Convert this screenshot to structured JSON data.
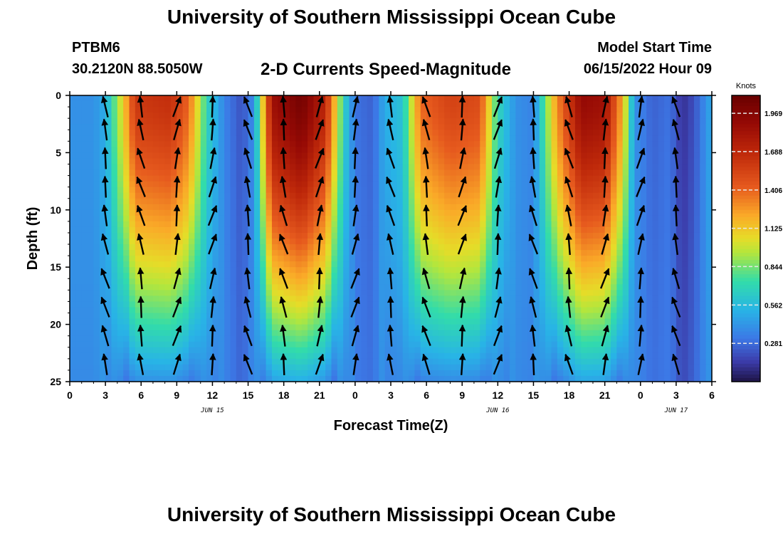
{
  "header": {
    "title": "University of Southern Mississippi Ocean Cube",
    "station": "PTBM6",
    "coordinates": "30.2120N  88.5050W",
    "subtitle": "2-D Currents Speed-Magnitude",
    "model_start_label": "Model Start Time",
    "model_start_value": "06/15/2022 Hour 09"
  },
  "footer": {
    "title": "University of Southern Mississippi Ocean Cube"
  },
  "chart_data": {
    "type": "heatmap",
    "title": "2-D Currents Speed-Magnitude",
    "xlabel": "Forecast Time(Z)",
    "ylabel": "Depth (ft)",
    "x_hours_range": [
      0,
      54
    ],
    "ylim": [
      0,
      25
    ],
    "x_tick_labels": [
      "0",
      "3",
      "6",
      "9",
      "12",
      "15",
      "18",
      "21",
      "0",
      "3",
      "6",
      "9",
      "12",
      "15",
      "18",
      "21",
      "0",
      "3",
      "6"
    ],
    "y_ticks": [
      0,
      5,
      10,
      15,
      20,
      25
    ],
    "date_labels": [
      {
        "text": "JUN 15",
        "hour": 12
      },
      {
        "text": "JUN 16",
        "hour": 36
      },
      {
        "text": "JUN 17",
        "hour": 51
      }
    ],
    "colorbar": {
      "unit": "Knots",
      "min": 0,
      "max": 2.1,
      "ticks": [
        1.969,
        1.688,
        1.406,
        1.125,
        0.844,
        0.562,
        0.281
      ]
    },
    "speed_profile_knots": [
      [
        0,
        0.4
      ],
      [
        2,
        0.4
      ],
      [
        3,
        0.5
      ],
      [
        4.5,
        1.1
      ],
      [
        5.5,
        1.6
      ],
      [
        8.5,
        1.65
      ],
      [
        10,
        1.4
      ],
      [
        11.5,
        0.7
      ],
      [
        13,
        0.35
      ],
      [
        14.5,
        0.2
      ],
      [
        15.5,
        0.4
      ],
      [
        17,
        1.85
      ],
      [
        19.5,
        2.05
      ],
      [
        21.5,
        1.7
      ],
      [
        23,
        0.7
      ],
      [
        24,
        0.3
      ],
      [
        25.5,
        0.25
      ],
      [
        26.5,
        0.5
      ],
      [
        28,
        0.6
      ],
      [
        29.5,
        1.4
      ],
      [
        32,
        1.55
      ],
      [
        34.5,
        1.5
      ],
      [
        36,
        0.7
      ],
      [
        37.5,
        0.4
      ],
      [
        39,
        0.35
      ],
      [
        41,
        1.3
      ],
      [
        43,
        1.9
      ],
      [
        45,
        1.85
      ],
      [
        46.5,
        1.2
      ],
      [
        47.5,
        0.4
      ],
      [
        49,
        0.25
      ],
      [
        50.5,
        0.3
      ],
      [
        51.5,
        0.1
      ],
      [
        52.5,
        0.2
      ],
      [
        54,
        0.5
      ]
    ],
    "vector_depths_ft": [
      1,
      3,
      5.5,
      8,
      10.5,
      13,
      16,
      18.5,
      21,
      23.5
    ]
  }
}
